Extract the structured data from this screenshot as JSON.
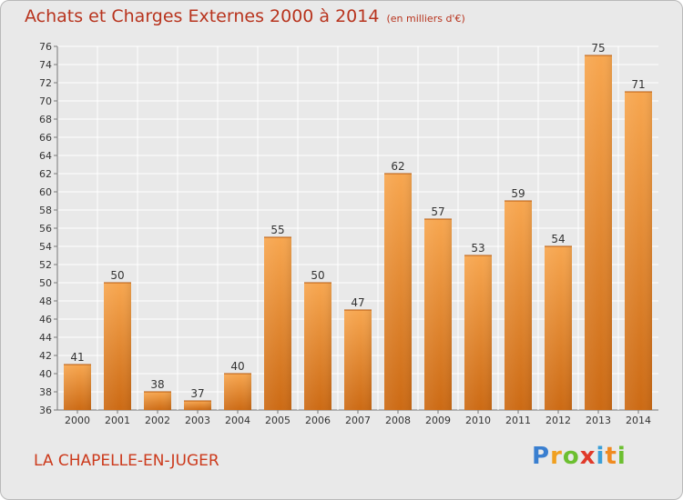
{
  "chart_data": {
    "type": "bar",
    "title": "Achats et Charges Externes 2000 à 2014",
    "subtitle": "(en milliers d'€)",
    "categories": [
      "2000",
      "2001",
      "2002",
      "2003",
      "2004",
      "2005",
      "2006",
      "2007",
      "2008",
      "2009",
      "2010",
      "2011",
      "2012",
      "2013",
      "2014"
    ],
    "values": [
      41,
      50,
      38,
      37,
      40,
      55,
      50,
      47,
      62,
      57,
      53,
      59,
      54,
      75,
      71
    ],
    "ylim": [
      36,
      76
    ],
    "yticks": [
      36,
      38,
      40,
      42,
      44,
      46,
      48,
      50,
      52,
      54,
      56,
      58,
      60,
      62,
      64,
      66,
      68,
      70,
      72,
      74,
      76
    ],
    "grid": true,
    "bar_color": "#f0963c",
    "xlabel": "",
    "ylabel": ""
  },
  "location": "LA CHAPELLE-EN-JUGER",
  "logo": {
    "letters": [
      "P",
      "r",
      "o",
      "x",
      "i",
      "t",
      "i"
    ],
    "colors": [
      "#3a7fd0",
      "#f0a020",
      "#6cbf30",
      "#e03a2a",
      "#3a9fd8",
      "#f08a20",
      "#6cbf30"
    ]
  }
}
